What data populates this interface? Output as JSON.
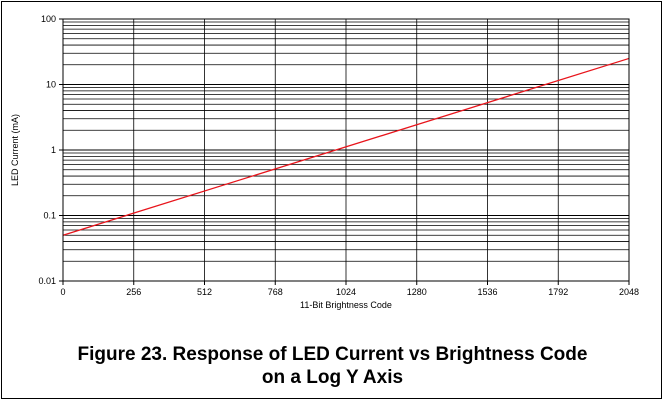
{
  "caption": {
    "line1": "Figure 23. Response of LED Current vs Brightness Code",
    "line2": "on a Log Y Axis"
  },
  "chart_data": {
    "type": "line",
    "title": "",
    "xlabel": "11-Bit Brightness Code",
    "ylabel": "LED Current (mA)",
    "xlim": [
      0,
      2048
    ],
    "ylim": [
      0.01,
      100
    ],
    "y_scale": "log",
    "x_ticks": [
      0,
      256,
      512,
      768,
      1024,
      1280,
      1536,
      1792,
      2048
    ],
    "x_tick_labels": [
      "0",
      "256",
      "512",
      "768",
      "1024",
      "1280",
      "1536",
      "1792",
      "2048"
    ],
    "y_ticks": [
      0.01,
      0.1,
      1,
      10,
      100
    ],
    "y_tick_labels": [
      "0.01",
      "0.1",
      "1",
      "10",
      "100"
    ],
    "grid": true,
    "legend": "none",
    "series": [
      {
        "color": "#e8141b",
        "x": [
          0,
          2048
        ],
        "y": [
          0.05,
          25
        ]
      }
    ]
  }
}
